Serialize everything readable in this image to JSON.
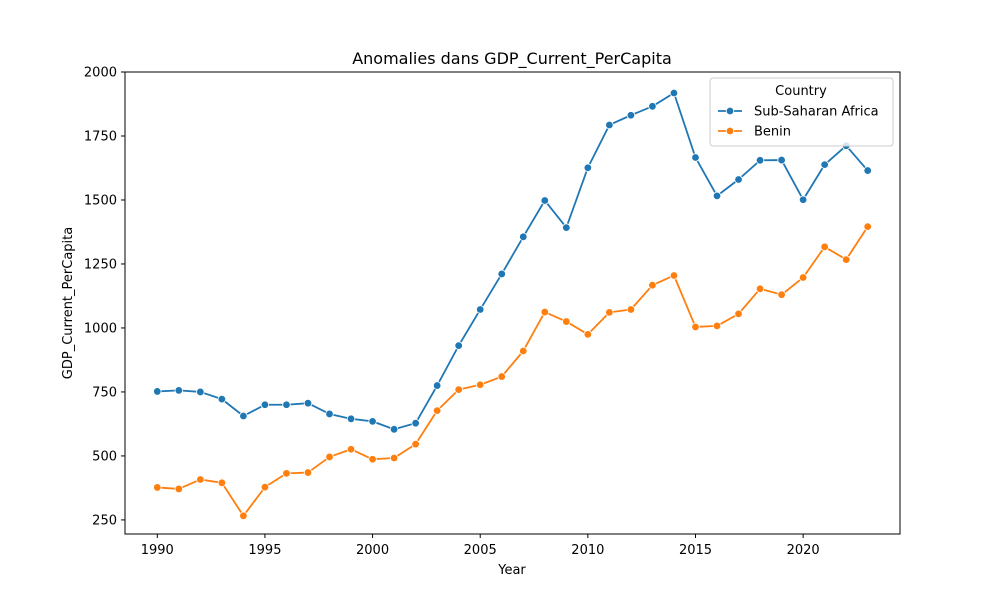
{
  "chart_data": {
    "type": "line",
    "title": "Anomalies dans GDP_Current_PerCapita",
    "xlabel": "Year",
    "ylabel": "GDP_Current_PerCapita",
    "xlim": [
      1988.5,
      2024.5
    ],
    "ylim": [
      195,
      2000
    ],
    "xticks": [
      1990,
      1995,
      2000,
      2005,
      2010,
      2015,
      2020
    ],
    "yticks": [
      250,
      500,
      750,
      1000,
      1250,
      1500,
      1750,
      2000
    ],
    "grid": false,
    "legend": {
      "title": "Country",
      "placement": "top-right"
    },
    "x": [
      1990,
      1991,
      1992,
      1993,
      1994,
      1995,
      1996,
      1997,
      1998,
      1999,
      2000,
      2001,
      2002,
      2003,
      2004,
      2005,
      2006,
      2007,
      2008,
      2009,
      2010,
      2011,
      2012,
      2013,
      2014,
      2015,
      2016,
      2017,
      2018,
      2019,
      2020,
      2021,
      2022,
      2023
    ],
    "series": [
      {
        "name": "Sub-Saharan Africa",
        "color": "#1f77b4",
        "values": [
          752,
          756,
          750,
          722,
          656,
          700,
          700,
          706,
          664,
          645,
          635,
          604,
          628,
          775,
          931,
          1072,
          1211,
          1356,
          1498,
          1392,
          1626,
          1793,
          1831,
          1866,
          1918,
          1666,
          1516,
          1580,
          1655,
          1656,
          1501,
          1638,
          1712,
          1615
        ]
      },
      {
        "name": "Benin",
        "color": "#ff7f0e",
        "values": [
          377,
          371,
          408,
          395,
          266,
          378,
          432,
          435,
          496,
          526,
          487,
          492,
          546,
          677,
          759,
          778,
          810,
          910,
          1062,
          1025,
          975,
          1061,
          1072,
          1167,
          1205,
          1004,
          1008,
          1055,
          1153,
          1130,
          1197,
          1317,
          1267,
          1396
        ]
      }
    ]
  }
}
